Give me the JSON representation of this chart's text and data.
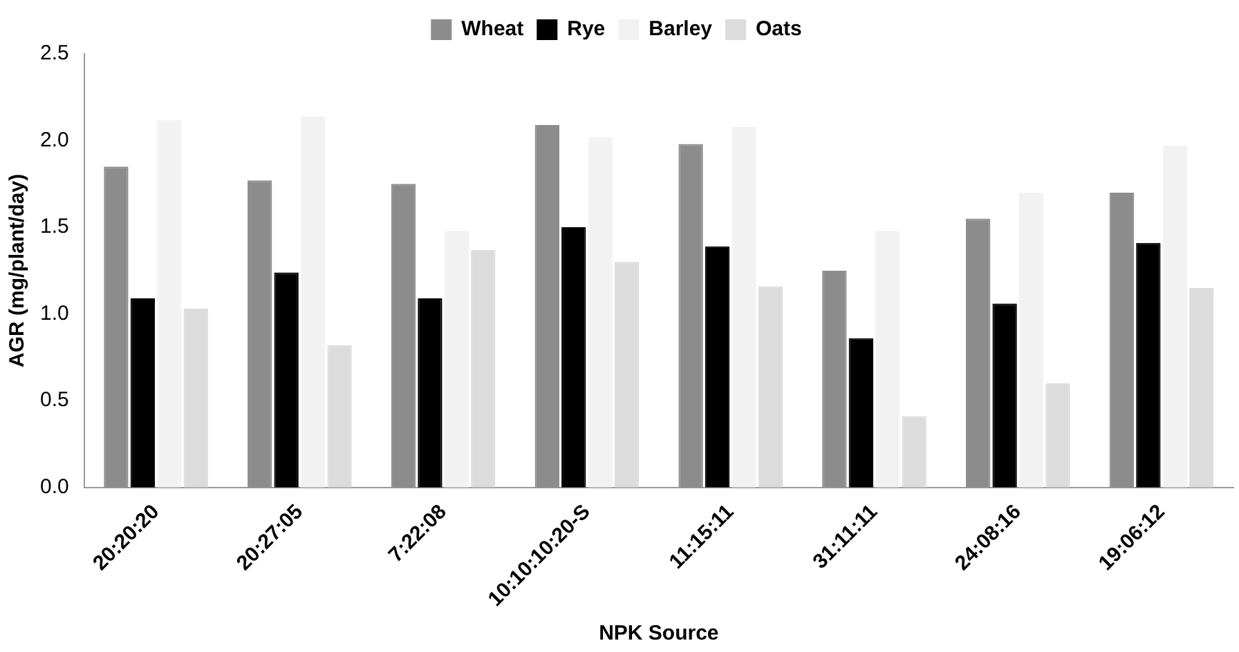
{
  "chart_data": {
    "type": "bar",
    "xlabel": "NPK Source",
    "ylabel": "AGR (mg/plant/day)",
    "categories": [
      "20:20:20",
      "20:27:05",
      "7:22:08",
      "10:10:10:20-S",
      "11:15:11",
      "31:11:11",
      "24:08:16",
      "19:06:12"
    ],
    "series": [
      {
        "name": "Wheat",
        "color": "#8c8c8c",
        "values": [
          1.85,
          1.77,
          1.75,
          2.09,
          1.98,
          1.25,
          1.55,
          1.7
        ]
      },
      {
        "name": "Rye",
        "color": "#000000",
        "values": [
          1.09,
          1.24,
          1.09,
          1.5,
          1.39,
          0.86,
          1.06,
          1.41
        ]
      },
      {
        "name": "Barley",
        "color": "#f2f2f2",
        "values": [
          2.12,
          2.14,
          1.48,
          2.02,
          2.08,
          1.48,
          1.7,
          1.97
        ]
      },
      {
        "name": "Oats",
        "color": "#dcdcdc",
        "values": [
          1.03,
          0.82,
          1.37,
          1.3,
          1.16,
          0.41,
          0.6,
          1.15
        ]
      }
    ],
    "ylim": [
      0,
      2.5
    ],
    "yticks": [
      {
        "value": 0,
        "label": "0.0"
      },
      {
        "value": 0.5,
        "label": "0.5"
      },
      {
        "value": 1,
        "label": "1.0"
      },
      {
        "value": 1.5,
        "label": "1.5"
      },
      {
        "value": 2,
        "label": "2.0"
      },
      {
        "value": 2.5,
        "label": "2.5"
      }
    ],
    "grid": false,
    "legend": "top"
  }
}
